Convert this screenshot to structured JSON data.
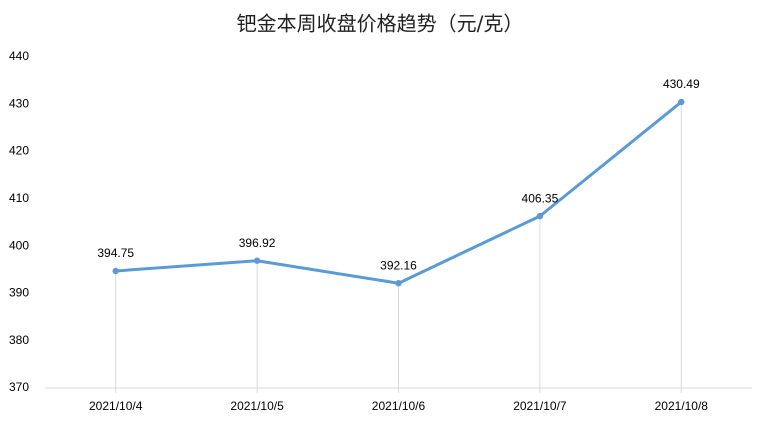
{
  "chart_data": {
    "type": "line",
    "title": "钯金本周收盘价格趋势（元/克）",
    "categories": [
      "2021/10/4",
      "2021/10/5",
      "2021/10/6",
      "2021/10/7",
      "2021/10/8"
    ],
    "values": [
      394.75,
      396.92,
      392.16,
      406.35,
      430.49
    ],
    "color": "#5b9bd5",
    "ylim": [
      370,
      440
    ],
    "yticks": [
      370,
      380,
      390,
      400,
      410,
      420,
      430,
      440
    ],
    "drop_lines": true,
    "data_labels": true
  }
}
